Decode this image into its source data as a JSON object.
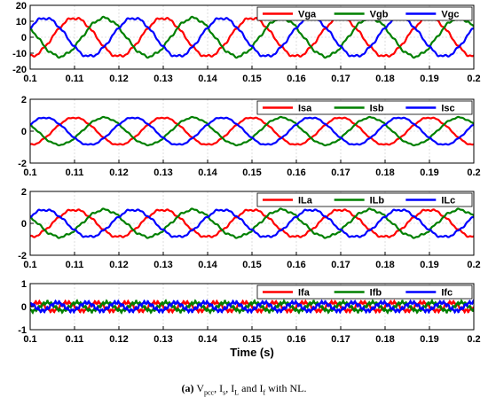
{
  "chart_data": [
    {
      "type": "line",
      "xlim": [
        0.1,
        0.2
      ],
      "ylim": [
        -20,
        20
      ],
      "xticks": [
        "0.1",
        "0.11",
        "0.12",
        "0.13",
        "0.14",
        "0.15",
        "0.16",
        "0.17",
        "0.18",
        "0.19",
        "0.2"
      ],
      "yticks": [
        "20",
        "10",
        "0",
        "-10",
        "-20"
      ],
      "legend_position": "top-right",
      "series": [
        {
          "name": "Vga",
          "color": "#ff0000",
          "amplitude": 12,
          "frequency_hz": 50,
          "phase_deg": -90,
          "ripple": 0.6
        },
        {
          "name": "Vgb",
          "color": "#008000",
          "amplitude": 12,
          "frequency_hz": 50,
          "phase_deg": 150,
          "ripple": 0.6
        },
        {
          "name": "Vgc",
          "color": "#0000ff",
          "amplitude": 12,
          "frequency_hz": 50,
          "phase_deg": 30,
          "ripple": 0.6
        }
      ]
    },
    {
      "type": "line",
      "xlim": [
        0.1,
        0.2
      ],
      "ylim": [
        -2,
        2
      ],
      "xticks": [
        "0.1",
        "0.11",
        "0.12",
        "0.13",
        "0.14",
        "0.15",
        "0.16",
        "0.17",
        "0.18",
        "0.19",
        "0.2"
      ],
      "yticks": [
        "2",
        "0",
        "-2"
      ],
      "legend_position": "top-right",
      "series": [
        {
          "name": "Isa",
          "color": "#ff0000",
          "amplitude": 0.85,
          "frequency_hz": 50,
          "phase_deg": -90,
          "ripple": 0.03
        },
        {
          "name": "Isb",
          "color": "#008000",
          "amplitude": 0.85,
          "frequency_hz": 50,
          "phase_deg": 150,
          "ripple": 0.03
        },
        {
          "name": "Isc",
          "color": "#0000ff",
          "amplitude": 0.85,
          "frequency_hz": 50,
          "phase_deg": 30,
          "ripple": 0.03
        }
      ]
    },
    {
      "type": "line",
      "xlim": [
        0.1,
        0.2
      ],
      "ylim": [
        -2,
        2
      ],
      "xticks": [
        "0.1",
        "0.11",
        "0.12",
        "0.13",
        "0.14",
        "0.15",
        "0.16",
        "0.17",
        "0.18",
        "0.19",
        "0.2"
      ],
      "yticks": [
        "2",
        "0",
        "-2"
      ],
      "legend_position": "top-right",
      "series": [
        {
          "name": "ILa",
          "color": "#ff0000",
          "amplitude": 0.85,
          "frequency_hz": 50,
          "phase_deg": -90,
          "ripple": 0.05
        },
        {
          "name": "ILb",
          "color": "#008000",
          "amplitude": 0.85,
          "frequency_hz": 50,
          "phase_deg": 150,
          "ripple": 0.05
        },
        {
          "name": "ILc",
          "color": "#0000ff",
          "amplitude": 0.85,
          "frequency_hz": 50,
          "phase_deg": 30,
          "ripple": 0.05
        }
      ]
    },
    {
      "type": "line",
      "xlim": [
        0.1,
        0.2
      ],
      "ylim": [
        -1,
        1
      ],
      "xticks": [
        "0.1",
        "0.11",
        "0.12",
        "0.13",
        "0.14",
        "0.15",
        "0.16",
        "0.17",
        "0.18",
        "0.19",
        "0.2"
      ],
      "yticks": [
        "1",
        "0",
        "-1"
      ],
      "legend_position": "top-right",
      "xlabel": "Time (s)",
      "series": [
        {
          "name": "Ifa",
          "color": "#ff0000",
          "amplitude": 0.18,
          "frequency_hz": 150,
          "phase_deg": 0,
          "ripple": 0.05
        },
        {
          "name": "Ifb",
          "color": "#008000",
          "amplitude": 0.18,
          "frequency_hz": 150,
          "phase_deg": -120,
          "ripple": 0.05
        },
        {
          "name": "Ifc",
          "color": "#0000ff",
          "amplitude": 0.18,
          "frequency_hz": 150,
          "phase_deg": 120,
          "ripple": 0.05
        }
      ]
    }
  ],
  "caption": {
    "label": "(a)",
    "text": "V",
    "sub1": "pcc",
    "sep1": ", I",
    "sub2": "s",
    "sep2": ", I",
    "sub3": "L",
    "sep3": " and I",
    "sub4": "f",
    "tail": " with NL."
  }
}
